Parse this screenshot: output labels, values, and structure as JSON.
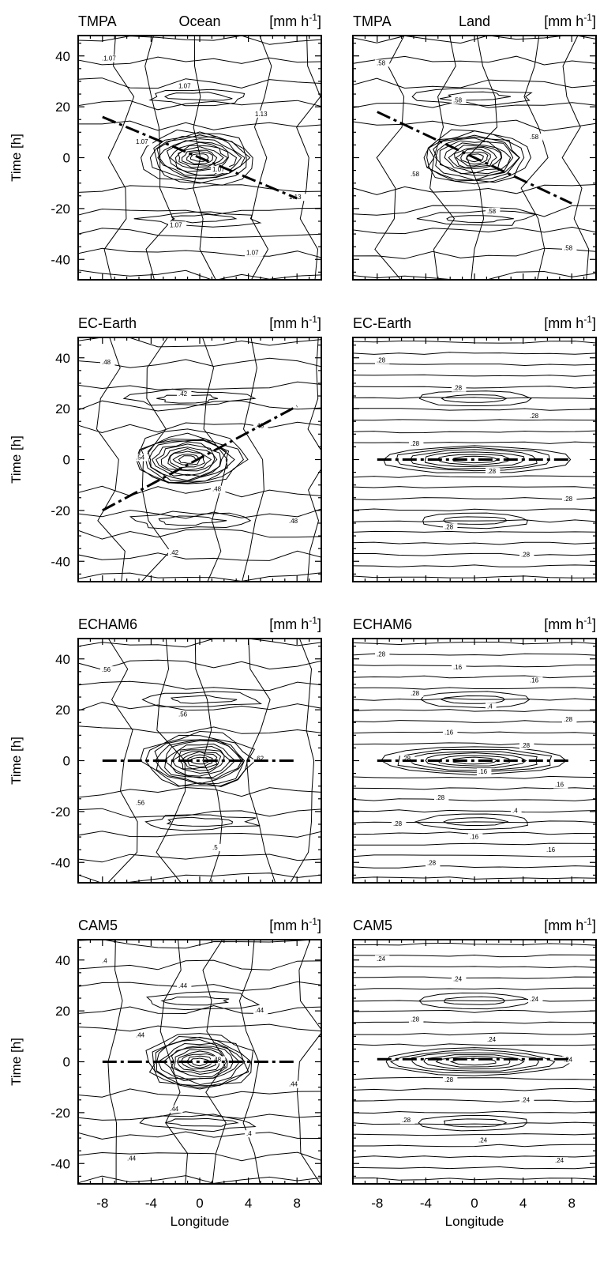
{
  "figure": {
    "units_label": "[mm h",
    "units_sup": "-1",
    "units_close": "]",
    "ylabel": "Time [h]",
    "xlabel": "Longitude"
  },
  "chart_data": [
    {
      "type": "contour",
      "model": "TMPA",
      "region": "Ocean",
      "row": 0,
      "col": 0,
      "xlim": [
        -10,
        10
      ],
      "ylim": [
        -48,
        48
      ],
      "xticks": [
        -8,
        -4,
        0,
        4,
        8
      ],
      "yticks": [
        -40,
        -20,
        0,
        20,
        40
      ],
      "peak": {
        "x": 0,
        "t": 0
      },
      "propagation_line": {
        "x": [
          -8,
          8
        ],
        "t": [
          16,
          -16
        ]
      },
      "contour_labels": [
        ".1.07",
        "1.07",
        "1.13",
        "1.07",
        "1.07",
        "1.13",
        "1.07",
        "1.07"
      ],
      "ellipses": [
        {
          "ry": 3,
          "rx": 5
        },
        {
          "ry": 7,
          "rx": 9
        },
        {
          "ry": 11,
          "rx": 12
        }
      ]
    },
    {
      "type": "contour",
      "model": "TMPA",
      "region": "Land",
      "row": 0,
      "col": 1,
      "xlim": [
        -10,
        10
      ],
      "ylim": [
        -48,
        48
      ],
      "xticks": [
        -8,
        -4,
        0,
        4,
        8
      ],
      "yticks": [
        -40,
        -20,
        0,
        20,
        40
      ],
      "peak": {
        "x": 0,
        "t": 0
      },
      "propagation_line": {
        "x": [
          -8,
          8
        ],
        "t": [
          18,
          -18
        ]
      },
      "contour_labels": [
        ".58",
        ".58",
        ".58",
        ".58",
        ".58",
        ".58"
      ]
    },
    {
      "type": "contour",
      "model": "EC-Earth",
      "region": "",
      "row": 1,
      "col": 0,
      "xlim": [
        -10,
        10
      ],
      "ylim": [
        -48,
        48
      ],
      "xticks": [
        -8,
        -4,
        0,
        4,
        8
      ],
      "yticks": [
        -40,
        -20,
        0,
        20,
        40
      ],
      "peak": {
        "x": -1,
        "t": 0
      },
      "propagation_line": {
        "x": [
          -8,
          8
        ],
        "t": [
          -20,
          21
        ]
      },
      "contour_labels": [
        ".48",
        ".42",
        ".48",
        ".54",
        ".48",
        ".48",
        ".42"
      ]
    },
    {
      "type": "contour",
      "model": "EC-Earth",
      "region": "",
      "row": 1,
      "col": 1,
      "xlim": [
        -10,
        10
      ],
      "ylim": [
        -48,
        48
      ],
      "xticks": [
        -8,
        -4,
        0,
        4,
        8
      ],
      "yticks": [
        -40,
        -20,
        0,
        20,
        40
      ],
      "peak": {
        "x": 0,
        "t": 0
      },
      "propagation_line": {
        "x": [
          -8,
          8
        ],
        "t": [
          0,
          0
        ]
      },
      "contour_labels": [
        ".28",
        ".28",
        ".28",
        ".28",
        ".28",
        ".28",
        ".28",
        ".28"
      ]
    },
    {
      "type": "contour",
      "model": "ECHAM6",
      "region": "",
      "row": 2,
      "col": 0,
      "xlim": [
        -10,
        10
      ],
      "ylim": [
        -48,
        48
      ],
      "xticks": [
        -8,
        -4,
        0,
        4,
        8
      ],
      "yticks": [
        -40,
        -20,
        0,
        20,
        40
      ],
      "peak": {
        "x": 0,
        "t": 0
      },
      "propagation_line": {
        "x": [
          -8,
          8
        ],
        "t": [
          0,
          0
        ]
      },
      "contour_labels": [
        ".56",
        ".56",
        ".62",
        ".56",
        ".5"
      ]
    },
    {
      "type": "contour",
      "model": "ECHAM6",
      "region": "",
      "row": 2,
      "col": 1,
      "xlim": [
        -10,
        10
      ],
      "ylim": [
        -48,
        48
      ],
      "xticks": [
        -8,
        -4,
        0,
        4,
        8
      ],
      "yticks": [
        -40,
        -20,
        0,
        20,
        40
      ],
      "peak": {
        "x": 0,
        "t": 0
      },
      "propagation_line": {
        "x": [
          -8,
          8
        ],
        "t": [
          0,
          0
        ]
      },
      "contour_labels": [
        ".28",
        ".16",
        ".16",
        ".28",
        ".4",
        ".28",
        ".16",
        ".28",
        ".28",
        ".16",
        ".16",
        ".28",
        ".4",
        ".28",
        ".16",
        ".16",
        ".28"
      ]
    },
    {
      "type": "contour",
      "model": "CAM5",
      "region": "",
      "row": 3,
      "col": 0,
      "xlim": [
        -10,
        10
      ],
      "ylim": [
        -48,
        48
      ],
      "xticks": [
        -8,
        -4,
        0,
        4,
        8
      ],
      "yticks": [
        -40,
        -20,
        0,
        20,
        40
      ],
      "peak": {
        "x": 0,
        "t": 0
      },
      "propagation_line": {
        "x": [
          -8,
          8
        ],
        "t": [
          0,
          0
        ]
      },
      "contour_labels": [
        ".4",
        ".44",
        ".44",
        ".44",
        ".48",
        ".44",
        ".44",
        ".4",
        ".44"
      ]
    },
    {
      "type": "contour",
      "model": "CAM5",
      "region": "",
      "row": 3,
      "col": 1,
      "xlim": [
        -10,
        10
      ],
      "ylim": [
        -48,
        48
      ],
      "xticks": [
        -8,
        -4,
        0,
        4,
        8
      ],
      "yticks": [
        -40,
        -20,
        0,
        20,
        40
      ],
      "peak": {
        "x": 0,
        "t": 0
      },
      "propagation_line": {
        "x": [
          -8,
          8
        ],
        "t": [
          1,
          1
        ]
      },
      "contour_labels": [
        ".24",
        ".24",
        ".24",
        ".28",
        ".24",
        ".24",
        ".28",
        ".24",
        ".28",
        ".24",
        ".24"
      ]
    }
  ]
}
